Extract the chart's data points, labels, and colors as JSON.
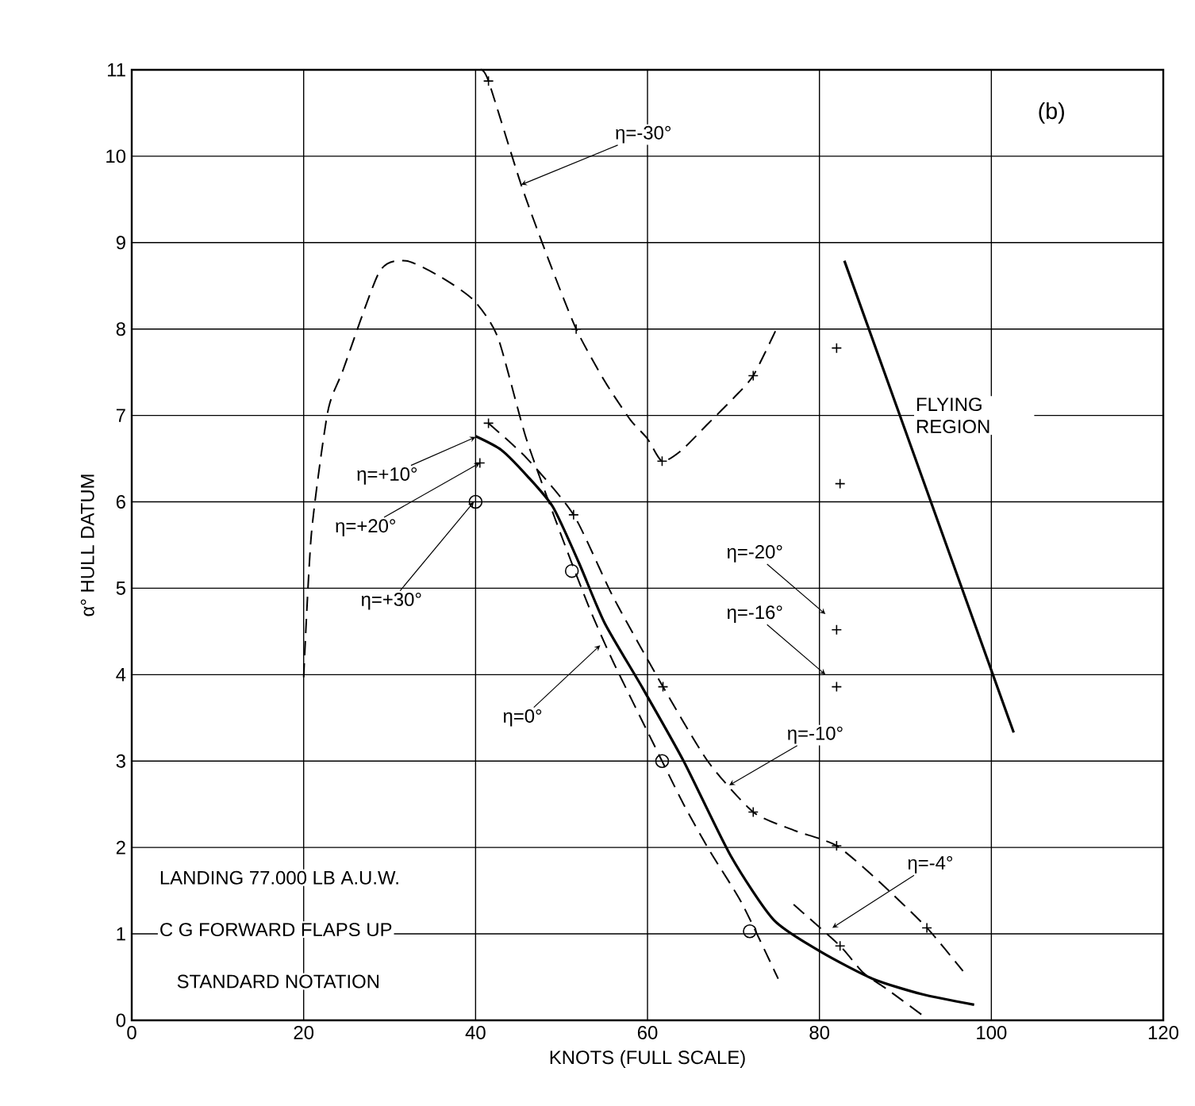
{
  "chart_data": {
    "type": "line",
    "xlabel": "KNOTS (FULL SCALE)",
    "ylabel": "α° HULL DATUM",
    "xlim": [
      0,
      120
    ],
    "ylim": [
      0,
      11
    ],
    "xticks": [
      0,
      20,
      40,
      60,
      80,
      100,
      120
    ],
    "yticks": [
      0,
      1,
      2,
      3,
      4,
      5,
      6,
      7,
      8,
      9,
      10,
      11
    ],
    "grid": true,
    "marker": "none",
    "series": [
      {
        "color": "#000000",
        "line_style": "dashed",
        "x": [
          40.6,
          41.5,
          45.3,
          48.5,
          51.7,
          55,
          58,
          60,
          61.7,
          64,
          67,
          70,
          72.3,
          74.9
        ],
        "values": [
          11.0,
          10.87,
          9.67,
          8.8,
          8.0,
          7.4,
          6.95,
          6.73,
          6.47,
          6.6,
          6.9,
          7.2,
          7.46,
          7.98
        ]
      },
      {
        "color": "#000000",
        "line_style": "dashed",
        "x": [
          20,
          20.9,
          22.8,
          24.6,
          28.8,
          31.9,
          36,
          39.8,
          42.6,
          45.9,
          49.9,
          53.2,
          56,
          60.6,
          64.2,
          67.3,
          71,
          75.2
        ],
        "values": [
          3.97,
          5.63,
          7.04,
          7.53,
          8.66,
          8.79,
          8.6,
          8.33,
          7.9,
          6.73,
          5.63,
          4.78,
          4.15,
          3.22,
          2.5,
          1.95,
          1.35,
          0.48
        ]
      },
      {
        "color": "#000000",
        "line_style": "solid",
        "x": [
          40,
          43,
          46,
          49,
          52,
          55,
          59.4,
          64.2,
          69.7,
          74.7,
          80.2,
          86.2,
          92,
          98
        ],
        "values": [
          6.76,
          6.6,
          6.3,
          5.94,
          5.3,
          4.6,
          3.85,
          3.0,
          1.9,
          1.16,
          0.79,
          0.48,
          0.3,
          0.18
        ]
      },
      {
        "color": "#000000",
        "line_style": "dashed",
        "x": [
          41.5,
          46,
          51.4,
          56,
          61.8,
          67,
          72.3,
          77,
          82,
          87,
          92.5,
          96.7
        ],
        "values": [
          6.91,
          6.5,
          5.85,
          4.9,
          3.86,
          3.0,
          2.41,
          2.2,
          2.02,
          1.6,
          1.07,
          0.57
        ]
      },
      {
        "color": "#000000",
        "line_style": "dashed",
        "x": [
          77,
          82.4,
          85.1,
          88,
          92.5
        ],
        "values": [
          1.34,
          0.86,
          0.55,
          0.35,
          0.02
        ]
      },
      {
        "color": "#000000",
        "line_style": "solid",
        "x": [
          82.9,
          102.6
        ],
        "values": [
          8.79,
          3.33
        ]
      },
      {
        "type": "scatter",
        "marker": "cross",
        "color": "#000000",
        "x": [
          41.5,
          41.5,
          51.7,
          61.7,
          72.3,
          51.4,
          61.8,
          72.3,
          82,
          92.5,
          82.4,
          82,
          82.4,
          82,
          82
        ],
        "values": [
          10.87,
          6.91,
          8.0,
          6.47,
          7.46,
          5.85,
          3.86,
          2.41,
          2.02,
          1.07,
          0.86,
          7.78,
          6.21,
          4.52,
          3.86
        ]
      },
      {
        "type": "scatter",
        "marker": "circle",
        "color": "#000000",
        "x": [
          40,
          51.2,
          61.7,
          71.9
        ],
        "values": [
          6.0,
          5.2,
          3.0,
          1.03
        ]
      },
      {
        "type": "scatter",
        "marker": "cross",
        "color": "#000000",
        "x": [
          40.5
        ],
        "values": [
          6.45
        ]
      }
    ],
    "annotations": [
      "(b)",
      "FLYING REGION",
      "LANDING 77.000 LB A.U.W.",
      "C G FORWARD FLAPS UP",
      "STANDARD NOTATION",
      {
        "text": "η=-30°",
        "x": 45.3,
        "y": 9.67
      },
      {
        "text": "η=+10°",
        "x": 40,
        "y": 6.75
      },
      {
        "text": "η=+20°",
        "x": 40.5,
        "y": 6.45
      },
      {
        "text": "η=+30°",
        "x": 39.8,
        "y": 6.0
      },
      {
        "text": "η=0°",
        "x": 54.5,
        "y": 4.34
      },
      {
        "text": "η=-10°",
        "x": 69.5,
        "y": 2.72
      },
      {
        "text": "η=-20°",
        "x": 80.7,
        "y": 4.7
      },
      {
        "text": "η=-16°",
        "x": 80.7,
        "y": 4.0
      },
      {
        "text": "η=-4°",
        "x": 81.5,
        "y": 1.07
      }
    ]
  }
}
